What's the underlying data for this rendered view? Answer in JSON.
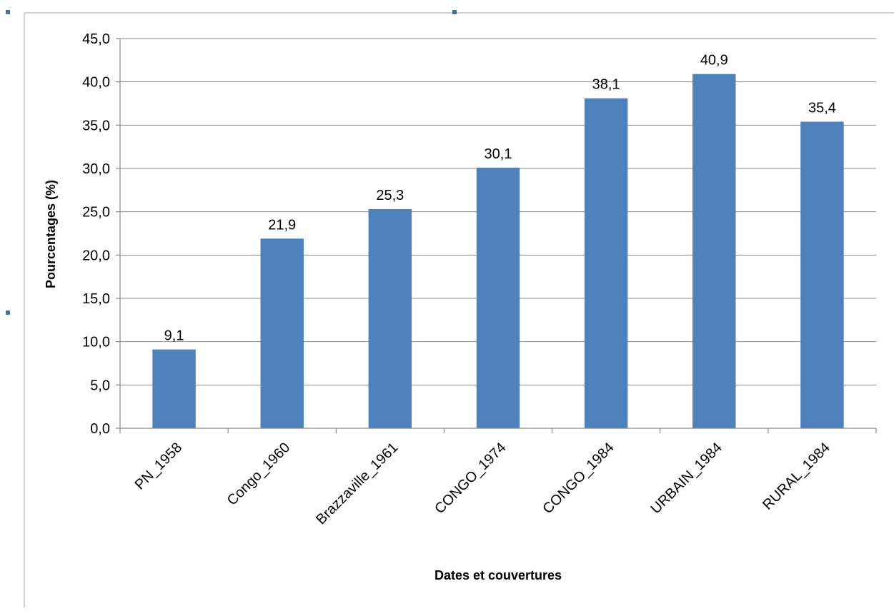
{
  "chart_data": {
    "type": "bar",
    "title": "",
    "xlabel": "Dates et couvertures",
    "ylabel": "Pourcentages (%)",
    "categories": [
      "PN_1958",
      "Congo_1960",
      "Brazzaville_1961",
      "CONGO_1974",
      "CONGO_1984",
      "URBAIN_1984",
      "RURAL_1984"
    ],
    "values": [
      9.1,
      21.9,
      25.3,
      30.1,
      38.1,
      40.9,
      35.4
    ],
    "value_labels": [
      "9,1",
      "21,9",
      "25,3",
      "30,1",
      "38,1",
      "40,9",
      "35,4"
    ],
    "y_ticks": [
      "0,0",
      "5,0",
      "10,0",
      "15,0",
      "20,0",
      "25,0",
      "30,0",
      "35,0",
      "40,0",
      "45,0"
    ],
    "ylim": [
      0,
      45
    ],
    "y_step": 5,
    "grid": true,
    "legend": "none",
    "bar_color": "#4f81bd"
  }
}
